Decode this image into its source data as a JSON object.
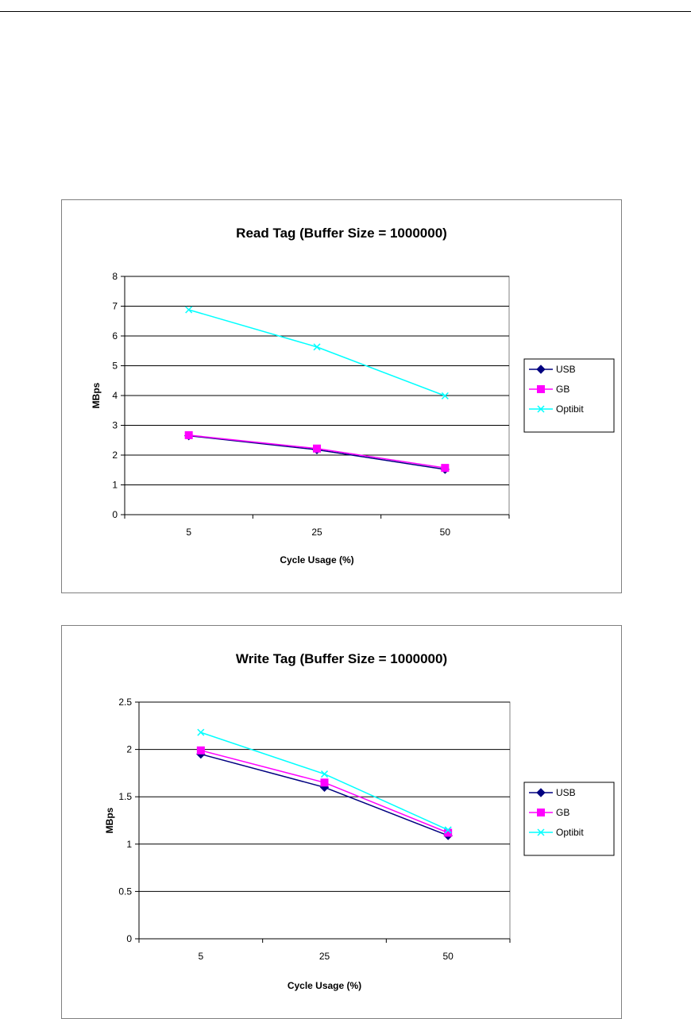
{
  "chart_data": [
    {
      "type": "line",
      "title": "Read Tag (Buffer Size = 1000000)",
      "xlabel": "Cycle Usage (%)",
      "ylabel": "MBps",
      "categories": [
        "5",
        "25",
        "50"
      ],
      "ylim": [
        0,
        8
      ],
      "yticks": [
        "0",
        "1",
        "2",
        "3",
        "4",
        "5",
        "6",
        "7",
        "8"
      ],
      "grid": true,
      "legend": "right",
      "series": [
        {
          "name": "USB",
          "values": [
            2.65,
            2.18,
            1.52
          ],
          "color": "#000080",
          "marker": "diamond"
        },
        {
          "name": "GB",
          "values": [
            2.67,
            2.22,
            1.57
          ],
          "color": "#ff00ff",
          "marker": "square"
        },
        {
          "name": "Optibit",
          "values": [
            6.88,
            5.63,
            3.99
          ],
          "color": "#00ffff",
          "marker": "x"
        }
      ]
    },
    {
      "type": "line",
      "title": "Write Tag (Buffer Size = 1000000)",
      "xlabel": "Cycle Usage (%)",
      "ylabel": "MBps",
      "categories": [
        "5",
        "25",
        "50"
      ],
      "ylim": [
        0,
        2.5
      ],
      "yticks": [
        "0",
        "0.5",
        "1",
        "1.5",
        "2",
        "2.5"
      ],
      "grid": true,
      "legend": "right",
      "series": [
        {
          "name": "USB",
          "values": [
            1.95,
            1.6,
            1.09
          ],
          "color": "#000080",
          "marker": "diamond"
        },
        {
          "name": "GB",
          "values": [
            1.99,
            1.65,
            1.12
          ],
          "color": "#ff00ff",
          "marker": "square"
        },
        {
          "name": "Optibit",
          "values": [
            2.18,
            1.74,
            1.15
          ],
          "color": "#00ffff",
          "marker": "x"
        }
      ]
    }
  ]
}
